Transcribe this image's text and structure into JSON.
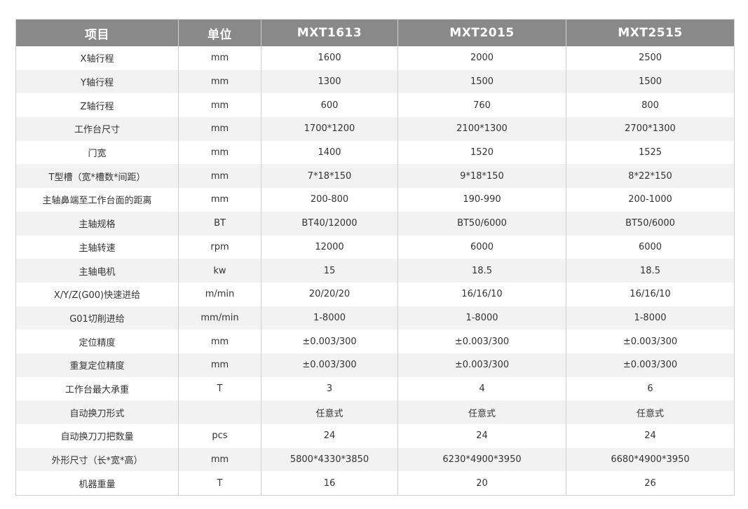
{
  "headers": [
    "项目",
    "单位",
    "MXT1613",
    "MXT2015",
    "MXT2515"
  ],
  "rows": [
    [
      "X轴行程",
      "mm",
      "1600",
      "2000",
      "2500"
    ],
    [
      "Y轴行程",
      "mm",
      "1300",
      "1500",
      "1500"
    ],
    [
      "Z轴行程",
      "mm",
      "600",
      "760",
      "800"
    ],
    [
      "工作台尺寸",
      "mm",
      "1700*1200",
      "2100*1300",
      "2700*1300"
    ],
    [
      "门宽",
      "mm",
      "1400",
      "1520",
      "1525"
    ],
    [
      "T型槽（宽*槽数*间距）",
      "mm",
      "7*18*150",
      "9*18*150",
      "8*22*150"
    ],
    [
      "主轴鼻端至工作台面的距离",
      "mm",
      "200-800",
      "190-990",
      "200-1000"
    ],
    [
      "主轴规格",
      "BT",
      "BT40/12000",
      "BT50/6000",
      "BT50/6000"
    ],
    [
      "主轴转速",
      "rpm",
      "12000",
      "6000",
      "6000"
    ],
    [
      "主轴电机",
      "kw",
      "15",
      "18.5",
      "18.5"
    ],
    [
      "X/Y/Z(G00)快速进给",
      "m/min",
      "20/20/20",
      "16/16/10",
      "16/16/10"
    ],
    [
      "G01切削进给",
      "mm/min",
      "1-8000",
      "1-8000",
      "1-8000"
    ],
    [
      "定位精度",
      "mm",
      "±0.003/300",
      "±0.003/300",
      "±0.003/300"
    ],
    [
      "重复定位精度",
      "mm",
      "±0.003/300",
      "±0.003/300",
      "±0.003/300"
    ],
    [
      "工作台最大承重",
      "T",
      "3",
      "4",
      "6"
    ],
    [
      "自动换刀形式",
      "",
      "任意式",
      "任意式",
      "任意式"
    ],
    [
      "自动换刀刀把数量",
      "pcs",
      "24",
      "24",
      "24"
    ],
    [
      "外形尺寸（长*宽*高）",
      "mm",
      "5800*4330*3850",
      "6230*4900*3950",
      "6680*4900*3950"
    ],
    [
      "机器重量",
      "T",
      "16",
      "20",
      "26"
    ]
  ]
}
